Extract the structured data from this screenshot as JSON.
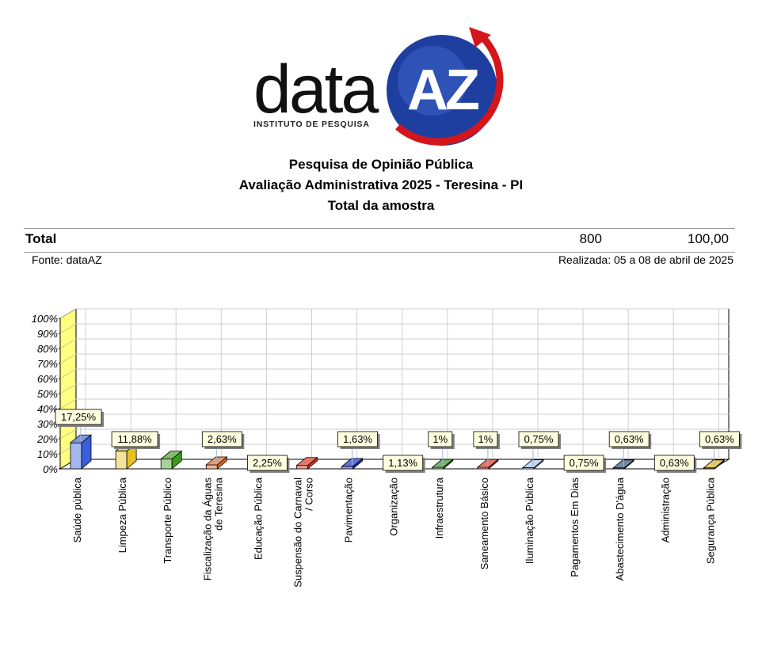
{
  "logo": {
    "word": "data",
    "badge": "AZ",
    "tagline": "INSTITUTO DE PESQUISA",
    "colors": {
      "badge": "#1f3fa0",
      "arrow": "#d4161c"
    }
  },
  "header": {
    "line1": "Pesquisa de Opinião Pública",
    "line2": "Avaliação Administrativa 2025 - Teresina - PI",
    "line3": "Total da amostra"
  },
  "total": {
    "label": "Total",
    "n": "800",
    "pct": "100,00"
  },
  "meta": {
    "source": "Fonte: dataAZ",
    "date": "Realizada: 05 a 08 de abril de 2025"
  },
  "chart_data": {
    "type": "bar",
    "categories": [
      "Saúde pública",
      "Limpeza Pública",
      "Transporte Público",
      "Fiscalização da Águas de Teresina",
      "Educação Pública",
      "Suspensão do Carnaval / Corso",
      "Pavimentação",
      "Organização",
      "Infraestrutura",
      "Saneamento Básico",
      "Iluminação Pública",
      "Pagamentos Em Dias",
      "Abastecimento D'água",
      "Administração",
      "Segurança Pública"
    ],
    "category_lines": [
      [
        "Saúde pública"
      ],
      [
        "Limpeza Pública"
      ],
      [
        "Transporte Público"
      ],
      [
        "Fiscalização da Águas",
        "de Teresina"
      ],
      [
        "Educação Pública"
      ],
      [
        "Suspensão do Carnaval",
        "/ Corso"
      ],
      [
        "Pavimentação"
      ],
      [
        "Organização"
      ],
      [
        "Infraestrutura"
      ],
      [
        "Saneamento Básico"
      ],
      [
        "Iluminação Pública"
      ],
      [
        "Pagamentos Em Dias"
      ],
      [
        "Abastecimento D'água"
      ],
      [
        "Administração"
      ],
      [
        "Segurança Pública"
      ]
    ],
    "values": [
      17.25,
      11.88,
      6.5,
      2.63,
      2.25,
      2.25,
      1.63,
      1.13,
      1,
      1,
      0.75,
      0.75,
      0.63,
      0.63,
      0.63
    ],
    "data_labels": [
      "17,25%",
      "11,88%",
      "",
      "2,63%",
      "2,25%",
      "",
      "1,63%",
      "1,13%",
      "1%",
      "1%",
      "0,75%",
      "0,75%",
      "0,63%",
      "0,63%",
      "0,63%"
    ],
    "colors": [
      "#3a5fd8",
      "#e6c020",
      "#3c9a1c",
      "#e0641c",
      "#ffffff",
      "#d4301c",
      "#1428c0",
      "#e8c020",
      "#2f8a1a",
      "#d0301c",
      "#9fc4f0",
      "#1e60a0",
      "#2c4a6a",
      "#f0d020",
      "#e0b010"
    ],
    "yticks": [
      "0%",
      "10%",
      "20%",
      "30%",
      "40%",
      "50%",
      "60%",
      "70%",
      "80%",
      "90%",
      "100%"
    ],
    "ylim": [
      0,
      100
    ],
    "grid": true
  }
}
